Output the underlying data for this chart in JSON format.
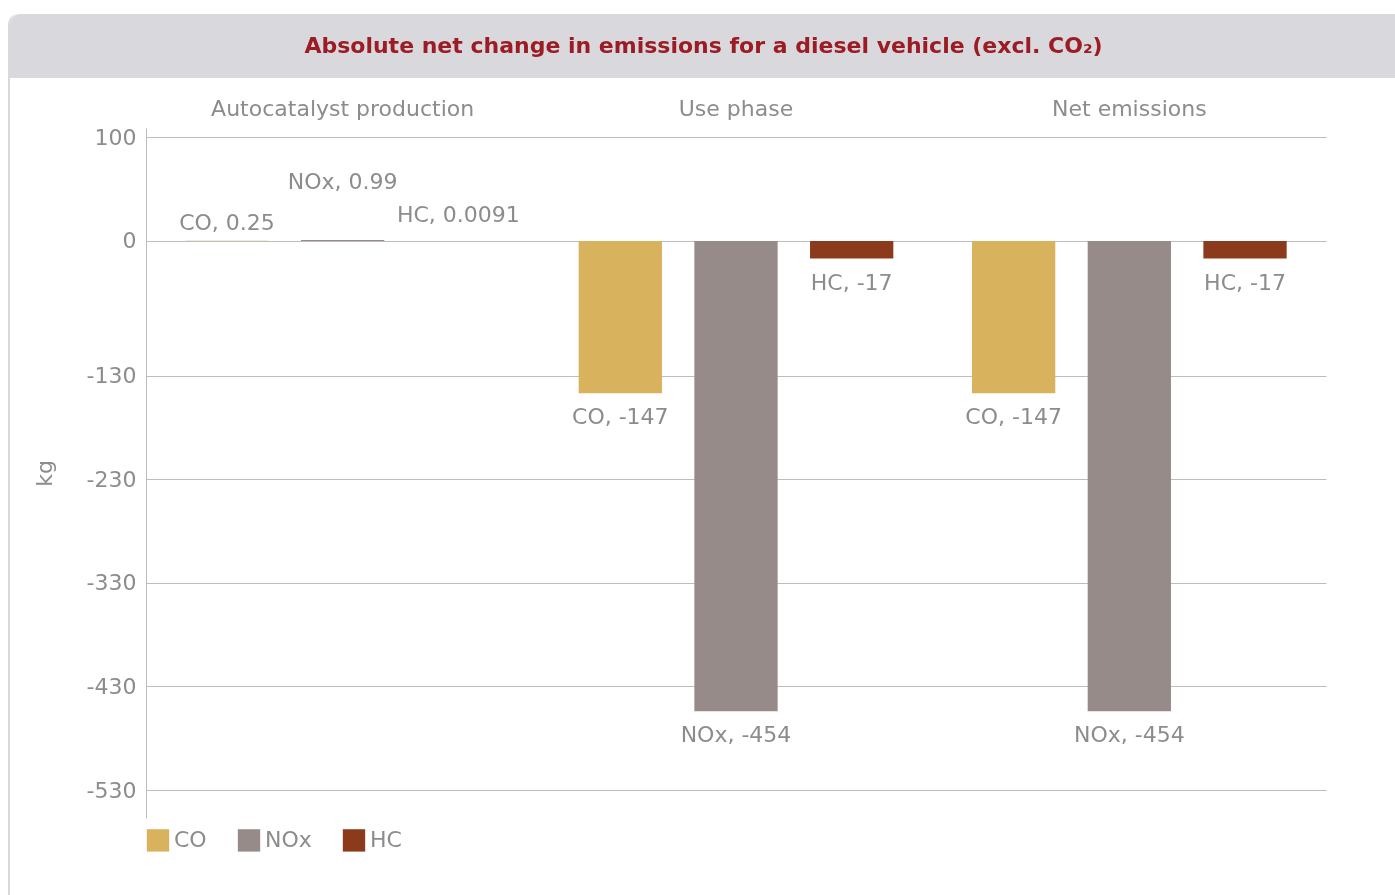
{
  "chart_data": {
    "type": "bar",
    "title": "Absolute net change in emissions for a diesel vehicle (excl. CO₂)",
    "ylabel": "kg",
    "categories": [
      "Autocatalyst production",
      "Use phase",
      "Net emissions"
    ],
    "series": [
      {
        "name": "CO",
        "color": "#d8b25c",
        "values": [
          0.25,
          -147,
          -147
        ],
        "value_labels": [
          "CO, 0.25",
          "CO, -147",
          "CO, -147"
        ]
      },
      {
        "name": "NOx",
        "color": "#968b89",
        "values": [
          0.99,
          -454,
          -454
        ],
        "value_labels": [
          "NOx, 0.99",
          "NOx, -454",
          "NOx, -454"
        ]
      },
      {
        "name": "HC",
        "color": "#8b3a1b",
        "values": [
          0.0091,
          -17,
          -17
        ],
        "value_labels": [
          "HC, 0.0091",
          "HC, -17",
          "HC, -17"
        ]
      }
    ],
    "ylim": [
      -557,
      109
    ],
    "yticks": [
      100,
      0,
      -130,
      -230,
      -330,
      -430,
      -530
    ],
    "grid": "y",
    "legend": "bottom"
  }
}
